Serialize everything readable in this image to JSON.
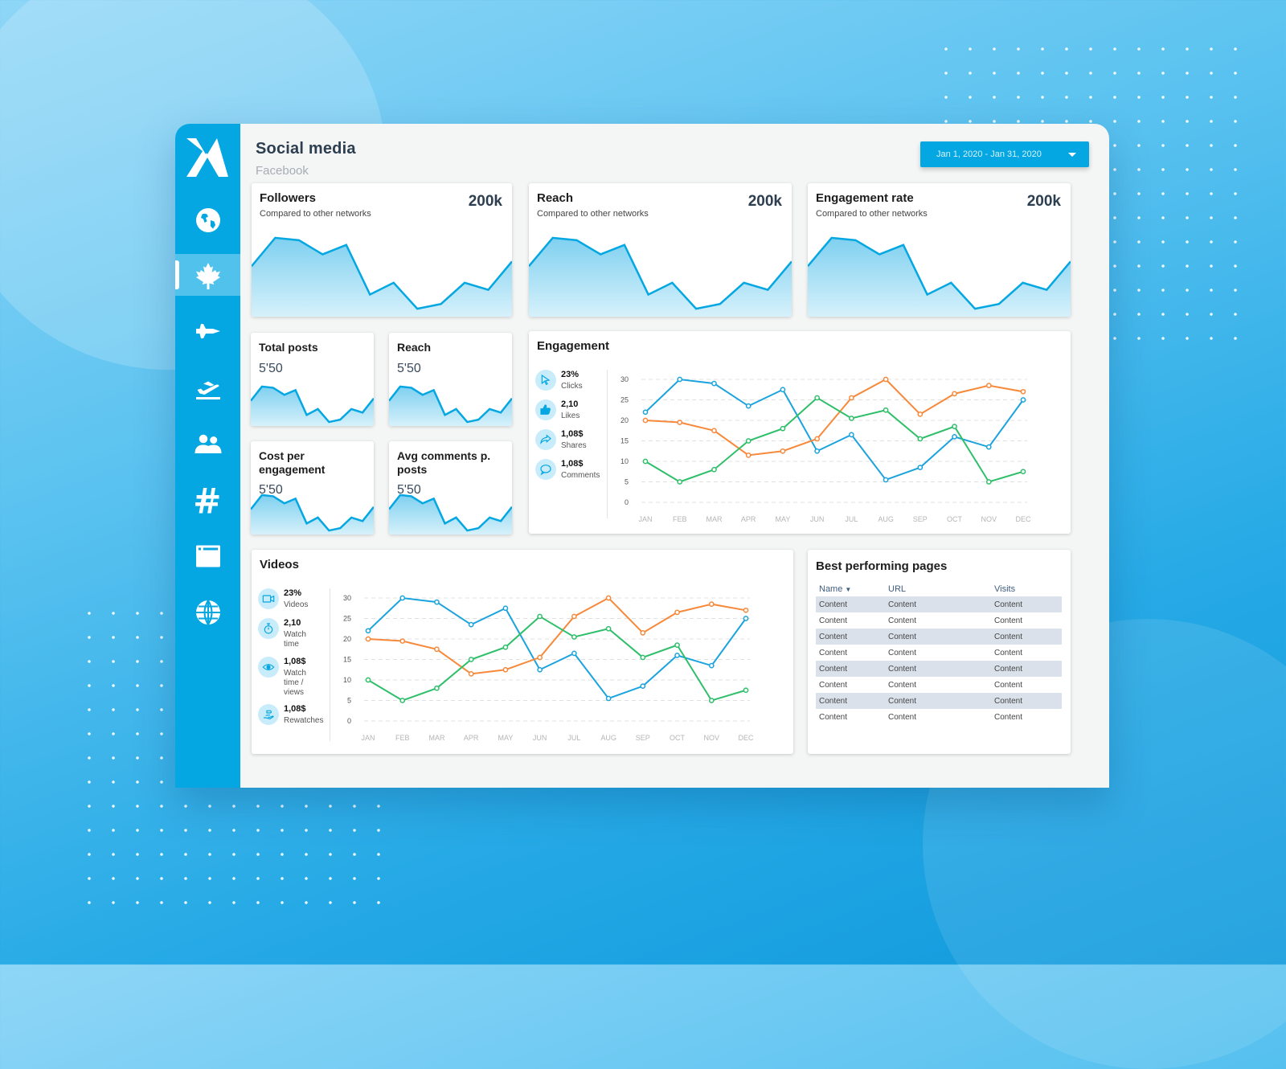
{
  "header": {
    "title": "Social media",
    "subtitle": "Facebook",
    "date_range": "Jan 1, 2020 - Jan 31, 2020"
  },
  "sidebar": {
    "items": [
      {
        "icon": "globe-americas-icon",
        "active": false
      },
      {
        "icon": "maple-leaf-icon",
        "active": true
      },
      {
        "icon": "fighter-jet-icon",
        "active": false
      },
      {
        "icon": "plane-departure-icon",
        "active": false
      },
      {
        "icon": "users-icon",
        "active": false
      },
      {
        "icon": "hashtag-icon",
        "active": false
      },
      {
        "icon": "browser-window-icon",
        "active": false
      },
      {
        "icon": "globe-icon",
        "active": false
      }
    ]
  },
  "kpis_large": [
    {
      "title": "Followers",
      "subtitle": "Compared to other networks",
      "value": "200k"
    },
    {
      "title": "Reach",
      "subtitle": "Compared to other networks",
      "value": "200k"
    },
    {
      "title": "Engagement rate",
      "subtitle": "Compared to other networks",
      "value": "200k"
    }
  ],
  "kpis_small": [
    {
      "title": "Total posts",
      "value": "5'50"
    },
    {
      "title": "Reach",
      "value": "5'50"
    },
    {
      "title": "Cost per engagement",
      "value": "5'50"
    },
    {
      "title": "Avg comments p. posts",
      "value": "5'50"
    }
  ],
  "sparkline": [
    20,
    32,
    31,
    25,
    29,
    8,
    13,
    2,
    4,
    13,
    10,
    22
  ],
  "engagement": {
    "title": "Engagement",
    "legend": [
      {
        "value": "23%",
        "label": "Clicks",
        "icon": "cursor-icon"
      },
      {
        "value": "2,10",
        "label": "Likes",
        "icon": "thumbs-up-icon"
      },
      {
        "value": "1,08$",
        "label": "Shares",
        "icon": "share-icon"
      },
      {
        "value": "1,08$",
        "label": "Comments",
        "icon": "comment-icon"
      }
    ]
  },
  "videos": {
    "title": "Videos",
    "legend": [
      {
        "value": "23%",
        "label": "Videos",
        "icon": "video-camera-icon"
      },
      {
        "value": "2,10",
        "label": "Watch time",
        "icon": "stopwatch-icon"
      },
      {
        "value": "1,08$",
        "label": "Watch time / views",
        "icon": "eye-icon"
      },
      {
        "value": "1,08$",
        "label": "Rewatches",
        "icon": "hand-icon"
      }
    ]
  },
  "best_pages": {
    "title": "Best performing pages",
    "columns": [
      "Name",
      "URL",
      "Visits"
    ],
    "rows": [
      [
        "Content",
        "Content",
        "Content"
      ],
      [
        "Content",
        "Content",
        "Content"
      ],
      [
        "Content",
        "Content",
        "Content"
      ],
      [
        "Content",
        "Content",
        "Content"
      ],
      [
        "Content",
        "Content",
        "Content"
      ],
      [
        "Content",
        "Content",
        "Content"
      ],
      [
        "Content",
        "Content",
        "Content"
      ],
      [
        "Content",
        "Content",
        "Content"
      ]
    ]
  },
  "colors": {
    "accent": "#04a7e1",
    "blue": "#1ba3dd",
    "orange": "#f7893b",
    "green": "#2fbf6a"
  },
  "chart_data": [
    {
      "type": "line",
      "title": "Engagement",
      "categories": [
        "JAN",
        "FEB",
        "MAR",
        "APR",
        "MAY",
        "JUN",
        "JUL",
        "AUG",
        "SEP",
        "OCT",
        "NOV",
        "DEC"
      ],
      "ylim": [
        0,
        30
      ],
      "yticks": [
        0,
        5,
        10,
        15,
        20,
        25,
        30
      ],
      "grid": true,
      "series": [
        {
          "name": "Blue",
          "color": "#1ba3dd",
          "values": [
            22,
            30,
            29,
            23.5,
            27.5,
            12.5,
            16.5,
            5.5,
            8.5,
            16,
            13.5,
            25
          ]
        },
        {
          "name": "Orange",
          "color": "#f7893b",
          "values": [
            20,
            19.5,
            17.5,
            11.5,
            12.5,
            15.5,
            25.5,
            30,
            21.5,
            26.5,
            28.5,
            27
          ]
        },
        {
          "name": "Green",
          "color": "#2fbf6a",
          "values": [
            10,
            5,
            8,
            15,
            18,
            25.5,
            20.5,
            22.5,
            15.5,
            18.5,
            5,
            7.5
          ]
        }
      ]
    },
    {
      "type": "line",
      "title": "Videos",
      "categories": [
        "JAN",
        "FEB",
        "MAR",
        "APR",
        "MAY",
        "JUN",
        "JUL",
        "AUG",
        "SEP",
        "OCT",
        "NOV",
        "DEC"
      ],
      "ylim": [
        0,
        30
      ],
      "yticks": [
        0,
        5,
        10,
        15,
        20,
        25,
        30
      ],
      "grid": true,
      "series": [
        {
          "name": "Blue",
          "color": "#1ba3dd",
          "values": [
            22,
            30,
            29,
            23.5,
            27.5,
            12.5,
            16.5,
            5.5,
            8.5,
            16,
            13.5,
            25
          ]
        },
        {
          "name": "Orange",
          "color": "#f7893b",
          "values": [
            20,
            19.5,
            17.5,
            11.5,
            12.5,
            15.5,
            25.5,
            30,
            21.5,
            26.5,
            28.5,
            27
          ]
        },
        {
          "name": "Green",
          "color": "#2fbf6a",
          "values": [
            10,
            5,
            8,
            15,
            18,
            25.5,
            20.5,
            22.5,
            15.5,
            18.5,
            5,
            7.5
          ]
        }
      ]
    }
  ]
}
